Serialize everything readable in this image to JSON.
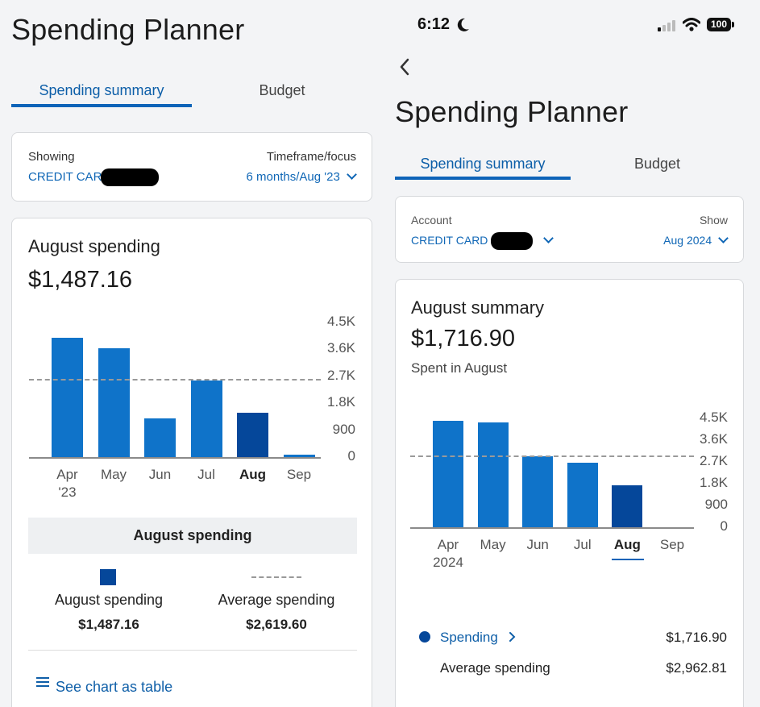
{
  "left": {
    "title": "Spending Planner",
    "tabs": {
      "summary": "Spending summary",
      "budget": "Budget"
    },
    "selector": {
      "showing_label": "Showing",
      "account_value": "CREDIT CARD (",
      "timeframe_label": "Timeframe/focus",
      "timeframe_value": "6 months/Aug '23"
    },
    "card": {
      "title": "August spending",
      "amount": "$1,487.16"
    },
    "chart_data": {
      "type": "bar",
      "categories": [
        "Apr '23",
        "May",
        "Jun",
        "Jul",
        "Aug",
        "Sep"
      ],
      "values": [
        4000,
        3650,
        1300,
        2550,
        1480,
        80
      ],
      "average": 2619.6,
      "ylim": [
        0,
        4500
      ],
      "y_ticks": [
        "4.5K",
        "3.6K",
        "2.7K",
        "1.8K",
        "900",
        "0"
      ],
      "x_labels": [
        [
          "Apr",
          "'23"
        ],
        [
          "May"
        ],
        [
          "Jun"
        ],
        [
          "Jul"
        ],
        [
          "Aug"
        ],
        [
          "Sep"
        ]
      ],
      "highlight": "Aug",
      "colors": {
        "bar": "#0f73c9",
        "highlight": "#05479a"
      }
    },
    "legend": {
      "heading": "August spending",
      "item1_label": "August spending",
      "item1_value": "$1,487.16",
      "item2_label": "Average spending",
      "item2_value": "$2,619.60"
    },
    "table_link": "See chart as table"
  },
  "right": {
    "status": {
      "time": "6:12",
      "battery": "100"
    },
    "title": "Spending Planner",
    "tabs": {
      "summary": "Spending summary",
      "budget": "Budget"
    },
    "selector": {
      "account_label": "Account",
      "account_value": "CREDIT CARD (",
      "show_label": "Show",
      "show_value": "Aug 2024"
    },
    "card": {
      "title": "August summary",
      "amount": "$1,716.90",
      "subtitle": "Spent in August"
    },
    "chart_data": {
      "type": "bar",
      "categories": [
        "Apr 2024",
        "May",
        "Jun",
        "Jul",
        "Aug",
        "Sep"
      ],
      "values": [
        4400,
        4350,
        2950,
        2680,
        1720,
        0
      ],
      "average": 2962.81,
      "ylim": [
        0,
        4500
      ],
      "y_ticks": [
        "4.5K",
        "3.6K",
        "2.7K",
        "1.8K",
        "900",
        "0"
      ],
      "x_labels": [
        [
          "Apr",
          "2024"
        ],
        [
          "May"
        ],
        [
          "Jun"
        ],
        [
          "Jul"
        ],
        [
          "Aug"
        ],
        [
          "Sep"
        ]
      ],
      "highlight": "Aug",
      "colors": {
        "bar": "#0f73c9",
        "highlight": "#05479a"
      }
    },
    "rows": {
      "spending_label": "Spending",
      "spending_value": "$1,716.90",
      "avg_label": "Average spending",
      "avg_value": "$2,962.81"
    }
  }
}
